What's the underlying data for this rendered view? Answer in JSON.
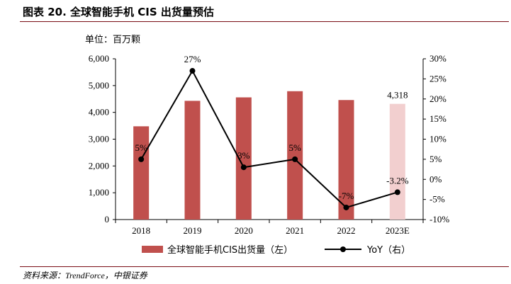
{
  "figure": {
    "title": "图表 20.  全球智能手机 CIS 出货量预估",
    "source": "资料来源：TrendForce，中银证券"
  },
  "chart_data": {
    "type": "bar",
    "unit_label": "单位：百万颗",
    "categories": [
      "2018",
      "2019",
      "2020",
      "2021",
      "2022",
      "2023E"
    ],
    "series": [
      {
        "name": "全球智能手机CIS出货量（左）",
        "type": "bar",
        "axis": "left",
        "values": [
          3480,
          4430,
          4560,
          4790,
          4460,
          4318
        ],
        "colors": [
          "#c0504d",
          "#c0504d",
          "#c0504d",
          "#c0504d",
          "#c0504d",
          "#f2cfcf"
        ]
      },
      {
        "name": "YoY（右）",
        "type": "line",
        "axis": "right",
        "values": [
          5,
          27,
          3,
          5,
          -7,
          -3.2
        ],
        "color": "#000000"
      }
    ],
    "data_labels": {
      "bar": [
        "",
        "",
        "",
        "",
        "",
        "4,318"
      ],
      "line": [
        "5%",
        "27%",
        "3%",
        "5%",
        "-7%",
        "-3.2%"
      ]
    },
    "y_left": {
      "ylim": [
        0,
        6000
      ],
      "ticks": [
        "0",
        "1,000",
        "2,000",
        "3,000",
        "4,000",
        "5,000",
        "6,000"
      ]
    },
    "y_right": {
      "ylim": [
        -10,
        30
      ],
      "ticks": [
        "-10%",
        "-5%",
        "0%",
        "5%",
        "10%",
        "15%",
        "20%",
        "25%",
        "30%"
      ]
    },
    "grid": false,
    "legend_position": "bottom"
  }
}
